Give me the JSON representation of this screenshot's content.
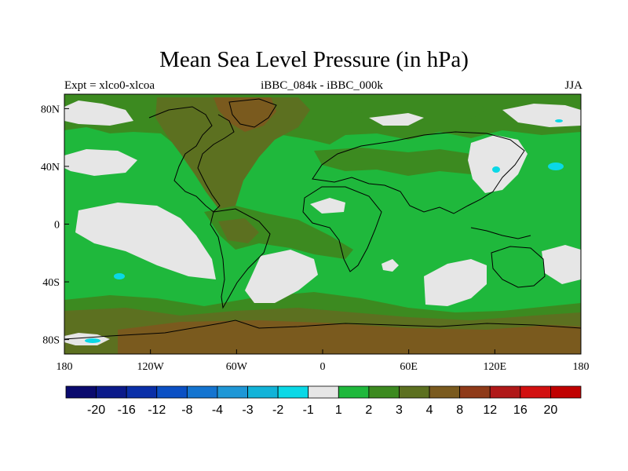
{
  "title": "Mean Sea Level Pressure (in hPa)",
  "subtitle_left": "Expt = xlco0-xlcoa",
  "subtitle_center": "iBBC_084k - iBBC_000k",
  "subtitle_right": "JJA",
  "x_ticks": [
    "180",
    "120W",
    "60W",
    "0",
    "60E",
    "120E",
    "180"
  ],
  "y_ticks": [
    "80N",
    "40N",
    "0",
    "40S",
    "80S"
  ],
  "colorbar": {
    "labels": [
      "-20",
      "-16",
      "-12",
      "-8",
      "-4",
      "-3",
      "-2",
      "-1",
      "1",
      "2",
      "3",
      "4",
      "8",
      "12",
      "16",
      "20"
    ],
    "colors": [
      "#0a0a6e",
      "#0b1a8a",
      "#0a2fa8",
      "#0b50c4",
      "#1474d0",
      "#1f97d6",
      "#12b3d8",
      "#0ad8e6",
      "#e6e6e6",
      "#1fb83c",
      "#3c8a20",
      "#5c7020",
      "#7a5a1e",
      "#8f3a18",
      "#b01818",
      "#d21010",
      "#c00000"
    ]
  },
  "chart_data": {
    "type": "heatmap",
    "title": "Mean Sea Level Pressure (in hPa)",
    "variable": "Mean Sea Level Pressure difference",
    "units": "hPa",
    "experiment": "xlco0-xlcoa",
    "comparison": "iBBC_084k - iBBC_000k",
    "season": "JJA",
    "xlim": [
      -180,
      180
    ],
    "ylim": [
      -90,
      90
    ],
    "x_ticks": [
      -180,
      -120,
      -60,
      0,
      60,
      120,
      180
    ],
    "y_ticks": [
      80,
      40,
      0,
      -40,
      -80
    ],
    "levels": [
      -20,
      -16,
      -12,
      -8,
      -4,
      -3,
      -2,
      -1,
      1,
      2,
      3,
      4,
      8,
      12,
      16,
      20
    ]
  }
}
